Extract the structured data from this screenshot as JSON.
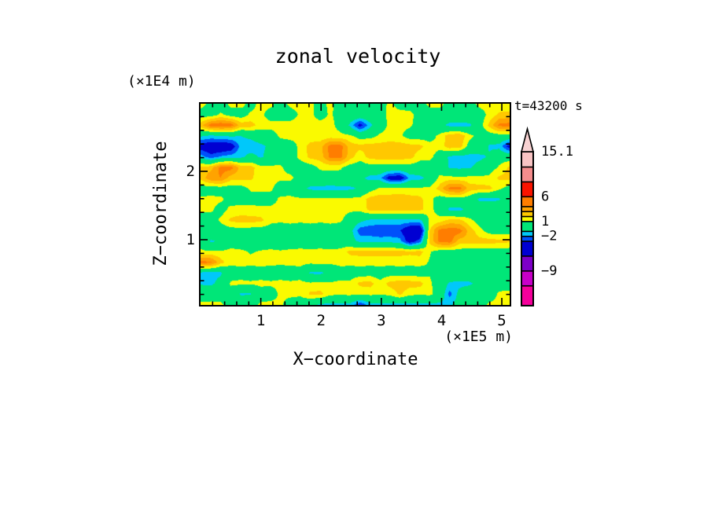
{
  "title": "zonal velocity",
  "time_label": "t=43200 s",
  "axes": {
    "x": {
      "title": "X−coordinate",
      "unit": "(×1E5 m)",
      "range": [
        0,
        5.13
      ],
      "major_ticks": [
        1,
        2,
        3,
        4,
        5
      ],
      "minor_step": 0.2
    },
    "z": {
      "title": "Z−coordinate",
      "unit": "(×1E4 m)",
      "range": [
        0,
        2.99
      ],
      "major_ticks": [
        1,
        2
      ],
      "minor_step": 0.2
    }
  },
  "legend": {
    "labels": [
      {
        "value": 15.1,
        "text": "15.1"
      },
      {
        "value": 6,
        "text": "6"
      },
      {
        "value": 1,
        "text": "1"
      },
      {
        "value": -2,
        "text": "−2"
      },
      {
        "value": -9,
        "text": "−9"
      }
    ],
    "arrow_color": "#f8d2d2",
    "position": "right"
  },
  "chart_data": {
    "type": "heatmap",
    "title": "zonal velocity",
    "xlabel": "X−coordinate (×1E5 m)",
    "ylabel": "Z−coordinate (×1E4 m)",
    "time_s": 43200,
    "x_range": [
      0,
      5.13
    ],
    "z_range": [
      0,
      2.99
    ],
    "levels": [
      -16,
      -12,
      -9,
      -6,
      -3,
      -2,
      -1,
      1,
      2,
      3,
      4,
      6,
      9,
      12,
      15.1
    ],
    "colors": [
      "#f5009b",
      "#c800c8",
      "#7d00c8",
      "#0000d2",
      "#0050fa",
      "#00c8fa",
      "#00e678",
      "#fafa00",
      "#ffc800",
      "#ffa300",
      "#ff7d00",
      "#fa1400",
      "#f58c8c",
      "#f8c3c3"
    ],
    "grid": {
      "cols": 32,
      "rows": 20,
      "values": [
        [
          1.4,
          0.6,
          0.2,
          1.3,
          1.4,
          0.5,
          1.4,
          1.3,
          0.4,
          1.3,
          1.4,
          1.3,
          0.5,
          1.3,
          0.4,
          0.3,
          0.2,
          0.3,
          0.4,
          1.3,
          0.4,
          0.3,
          0.4,
          1.3,
          1.4,
          0.4,
          0.3,
          0.4,
          1.3,
          1.4,
          1.4,
          1.3
        ],
        [
          0.4,
          0.3,
          1.2,
          0.4,
          0.3,
          1.2,
          1.3,
          0.4,
          0.3,
          0.4,
          1.2,
          1.3,
          0.4,
          1.2,
          0.4,
          0.3,
          0.3,
          0.4,
          0.3,
          1.4,
          1.5,
          1.4,
          0.4,
          0.3,
          0.3,
          0.4,
          0.3,
          0.3,
          0.4,
          1.3,
          2.2,
          2.3
        ],
        [
          2.6,
          4.6,
          4.8,
          4.6,
          2.6,
          2.5,
          1.5,
          1.4,
          1.5,
          1.4,
          1.5,
          1.4,
          1.5,
          1.4,
          0.5,
          -1.3,
          -3.6,
          -1.4,
          0.3,
          1.3,
          1.3,
          1.2,
          0.4,
          0.3,
          -0.5,
          -1.4,
          -1.5,
          -1.3,
          0.3,
          2.3,
          4.3,
          4.5
        ],
        [
          -0.8,
          -1.2,
          -0.9,
          -0.8,
          -1.0,
          -0.6,
          0.2,
          0.4,
          1.2,
          1.4,
          1.3,
          1.4,
          1.3,
          1.4,
          1.3,
          1.2,
          0.4,
          0.5,
          1.2,
          1.3,
          1.2,
          0.4,
          0.3,
          0.4,
          1.3,
          2.6,
          2.8,
          1.4,
          0.4,
          0.3,
          0.4,
          0.3
        ],
        [
          -3.8,
          -4.2,
          -4.5,
          -4.0,
          -1.6,
          -1.8,
          -1.4,
          -0.6,
          0.3,
          0.4,
          1.3,
          2.4,
          2.6,
          4.4,
          4.5,
          2.5,
          2.3,
          2.5,
          2.4,
          2.6,
          2.5,
          2.4,
          2.3,
          1.4,
          1.3,
          2.7,
          2.6,
          0.4,
          0.3,
          -1.2,
          -1.4,
          -3.6
        ],
        [
          -1.5,
          -2.6,
          -1.8,
          -1.5,
          -1.3,
          -0.5,
          -1.2,
          -0.4,
          0.3,
          0.4,
          1.3,
          2.3,
          2.5,
          4.3,
          4.4,
          2.4,
          1.4,
          2.4,
          2.5,
          2.6,
          2.5,
          2.4,
          1.4,
          1.3,
          0.4,
          -1.3,
          -1.4,
          -1.5,
          -1.4,
          -0.8,
          0.3,
          0.2
        ],
        [
          2.4,
          2.6,
          4.4,
          4.5,
          2.6,
          2.4,
          1.4,
          1.3,
          1.2,
          0.4,
          0.3,
          0.4,
          1.2,
          1.3,
          1.2,
          0.4,
          0.3,
          0.4,
          0.3,
          0.4,
          0.3,
          0.4,
          0.3,
          0.4,
          0.3,
          -1.2,
          -1.3,
          -1.2,
          -0.4,
          0.3,
          1.2,
          2.2
        ],
        [
          2.3,
          3.8,
          4.0,
          2.5,
          2.4,
          2.2,
          1.4,
          1.3,
          1.2,
          1.3,
          0.4,
          0.3,
          0.4,
          0.3,
          0.4,
          0.3,
          -0.6,
          -1.4,
          -1.6,
          -3.8,
          -4.0,
          -1.7,
          -1.4,
          -0.5,
          1.3,
          1.4,
          1.3,
          1.4,
          1.3,
          1.3,
          2.2,
          2.3
        ],
        [
          0.4,
          0.3,
          0.4,
          0.3,
          0.4,
          1.2,
          1.3,
          1.2,
          0.4,
          0.3,
          -0.5,
          -1.3,
          -1.4,
          -1.5,
          -1.4,
          -1.3,
          -0.8,
          0.4,
          1.2,
          1.3,
          1.4,
          1.3,
          1.2,
          1.3,
          2.4,
          4.3,
          4.5,
          2.5,
          2.4,
          2.3,
          1.2,
          0.5
        ],
        [
          1.2,
          1.3,
          1.2,
          0.5,
          0.4,
          0.5,
          0.4,
          0.5,
          1.2,
          1.3,
          1.2,
          1.3,
          1.2,
          1.3,
          1.2,
          1.3,
          1.4,
          2.4,
          2.6,
          2.5,
          2.6,
          2.4,
          2.3,
          1.3,
          0.4,
          0.3,
          0.4,
          0.3,
          -1.3,
          -1.4,
          -1.2,
          0.3
        ],
        [
          1.2,
          1.2,
          0.5,
          1.3,
          1.4,
          1.4,
          1.3,
          1.3,
          1.3,
          1.2,
          1.3,
          1.2,
          1.3,
          1.2,
          1.3,
          1.2,
          1.3,
          2.3,
          2.5,
          2.4,
          2.5,
          2.4,
          2.3,
          1.4,
          0.4,
          -1.3,
          -1.4,
          -0.4,
          0.3,
          0.4,
          0.3,
          0.4
        ],
        [
          0.3,
          0.4,
          1.2,
          2.2,
          2.5,
          2.4,
          2.3,
          1.3,
          1.2,
          1.3,
          1.2,
          1.3,
          1.2,
          1.3,
          1.2,
          0.4,
          -0.6,
          -1.2,
          -1.3,
          -1.4,
          -1.3,
          -1.2,
          -1.3,
          1.2,
          1.4,
          2.3,
          2.2,
          1.3,
          0.4,
          0.3,
          0.4,
          0.3
        ],
        [
          0.3,
          0.4,
          0.3,
          0.4,
          0.5,
          0.4,
          0.3,
          0.4,
          0.3,
          0.4,
          0.3,
          0.4,
          0.3,
          0.4,
          0.3,
          -0.5,
          -2.6,
          -2.8,
          -2.9,
          -2.8,
          -2.9,
          -4.5,
          -4.8,
          2.0,
          4.4,
          4.6,
          4.5,
          2.6,
          1.4,
          0.4,
          0.3,
          0.4
        ],
        [
          0.4,
          -1.2,
          -0.8,
          0.4,
          0.3,
          0.4,
          0.3,
          0.4,
          0.3,
          0.4,
          0.3,
          0.4,
          0.3,
          0.4,
          0.3,
          -0.4,
          -1.3,
          -1.2,
          -1.4,
          -1.4,
          -1.6,
          -3.8,
          -2.5,
          2.2,
          4.3,
          4.5,
          2.5,
          2.6,
          2.4,
          2.5,
          2.3,
          2.2
        ],
        [
          1.2,
          1.2,
          1.2,
          1.3,
          1.2,
          0.9,
          1.1,
          1.2,
          1.1,
          1.2,
          1.3,
          1.2,
          1.3,
          1.2,
          1.3,
          2.3,
          2.4,
          2.5,
          2.4,
          2.5,
          2.4,
          2.3,
          2.4,
          1.1,
          0.4,
          0.3,
          0.4,
          0.3,
          0.4,
          0.3,
          0.4,
          0.3
        ],
        [
          4.4,
          4.2,
          2.4,
          1.3,
          1.4,
          1.3,
          1.4,
          1.3,
          1.2,
          1.3,
          1.4,
          1.3,
          1.4,
          1.3,
          1.4,
          1.3,
          1.4,
          1.3,
          1.4,
          1.3,
          1.4,
          1.3,
          1.4,
          0.9,
          0.4,
          0.3,
          0.4,
          0.3,
          0.3,
          0.4,
          0.3,
          0.4
        ],
        [
          -1.3,
          -1.4,
          -1.2,
          0.3,
          0.4,
          0.3,
          0.4,
          0.3,
          0.4,
          0.3,
          0.4,
          -1.2,
          -1.3,
          -0.5,
          0.3,
          0.4,
          0.3,
          0.4,
          0.3,
          0.4,
          0.3,
          0.4,
          0.3,
          0.9,
          0.3,
          0.4,
          0.3,
          0.4,
          0.3,
          0.4,
          0.3,
          0.4
        ],
        [
          -1.2,
          -1.3,
          -0.5,
          1.2,
          1.3,
          1.2,
          1.3,
          1.2,
          1.3,
          1.2,
          1.3,
          1.2,
          1.3,
          1.2,
          1.3,
          1.2,
          2.3,
          2.4,
          1.3,
          2.4,
          2.6,
          2.5,
          2.4,
          1.2,
          0.3,
          -1.2,
          -1.4,
          -1.3,
          -0.4,
          0.3,
          0.4,
          0.3
        ],
        [
          0.4,
          0.3,
          0.4,
          0.3,
          -1.2,
          -1.1,
          0.3,
          0.4,
          1.2,
          1.3,
          1.2,
          2.2,
          2.3,
          1.3,
          1.2,
          1.3,
          1.2,
          1.3,
          1.2,
          1.3,
          2.2,
          1.3,
          1.2,
          1.3,
          0.4,
          -2.4,
          -0.5,
          0.3,
          0.4,
          0.3,
          1.2,
          1.3
        ],
        [
          1.2,
          1.3,
          1.2,
          0.4,
          0.3,
          0.4,
          1.2,
          1.3,
          1.2,
          0.4,
          0.3,
          -0.5,
          -1.2,
          -1.3,
          -1.2,
          -1.3,
          -2.8,
          -1.4,
          -1.3,
          -1.2,
          -1.3,
          -1.2,
          -1.3,
          -1.2,
          -1.3,
          -1.2,
          -0.4,
          0.3,
          0.4,
          1.2,
          1.3,
          1.2
        ]
      ]
    }
  }
}
